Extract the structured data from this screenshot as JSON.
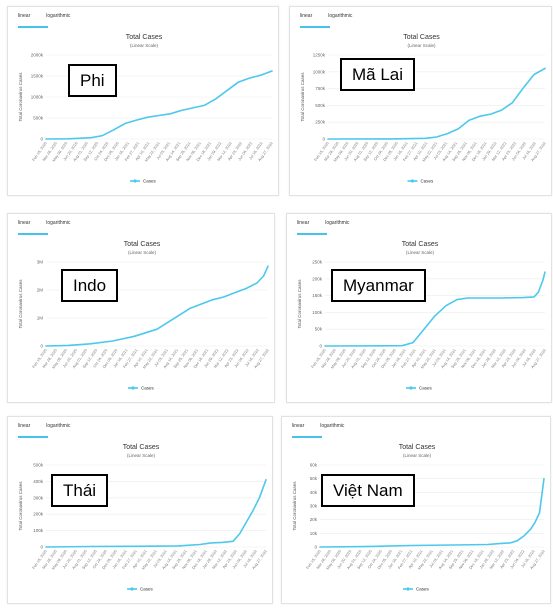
{
  "tabs": [
    "linear",
    "logarithmic"
  ],
  "chart_title": "Total Cases",
  "chart_subtitle": "(Linear Scale)",
  "ylabel": "Total Coronavirus Cases",
  "legend": "Cases",
  "line_color": "#4cc8ee",
  "chart_data": [
    {
      "type": "line",
      "country": "Phi",
      "yticks": [
        "0",
        "500k",
        "1000k",
        "1500k",
        "2000k"
      ],
      "ymax": 2000000,
      "xticks": [
        "Feb 15, 2020",
        "Mar 28, 2020",
        "May 09, 2020",
        "Jun 20, 2020",
        "Aug 01, 2020",
        "Sep 12, 2020",
        "Oct 24, 2020",
        "Dec 05, 2020",
        "Jan 16, 2021",
        "Feb 27, 2021",
        "Apr 10, 2021",
        "May 22, 2021",
        "Jul 03, 2021",
        "Aug 14, 2021",
        "Sep 25, 2021",
        "Nov 06, 2021",
        "Dec 18, 2021",
        "Jan 29, 2022",
        "Mar 12, 2022",
        "Apr 23, 2022",
        "Jun 04, 2022",
        "Jul 16, 2022",
        "Aug 27, 2022"
      ],
      "x": [
        0,
        0.1,
        0.2,
        0.25,
        0.3,
        0.35,
        0.4,
        0.45,
        0.5,
        0.55,
        0.6,
        0.65,
        0.7,
        0.75,
        0.8,
        0.85,
        0.9,
        0.95,
        1.0
      ],
      "values": [
        0,
        5000,
        30000,
        80000,
        220000,
        370000,
        450000,
        520000,
        560000,
        600000,
        680000,
        740000,
        800000,
        950000,
        1150000,
        1350000,
        1450000,
        1520000,
        1620000
      ]
    },
    {
      "type": "line",
      "country": "Mã Lai",
      "yticks": [
        "0",
        "250k",
        "500k",
        "750k",
        "1000k",
        "1250k"
      ],
      "ymax": 1250000,
      "xticks": [
        "Feb 15, 2020",
        "Mar 28, 2020",
        "May 09, 2020",
        "Jun 20, 2020",
        "Aug 01, 2020",
        "Sep 12, 2020",
        "Oct 24, 2020",
        "Dec 05, 2020",
        "Jan 16, 2021",
        "Feb 27, 2021",
        "Apr 10, 2021",
        "May 22, 2021",
        "Jul 03, 2021",
        "Aug 14, 2021",
        "Sep 25, 2021",
        "Nov 06, 2021",
        "Dec 18, 2021",
        "Jan 29, 2022",
        "Mar 12, 2022",
        "Apr 23, 2022",
        "Jun 04, 2022",
        "Jul 16, 2022",
        "Aug 27, 2022"
      ],
      "x": [
        0,
        0.3,
        0.45,
        0.5,
        0.55,
        0.6,
        0.65,
        0.7,
        0.75,
        0.8,
        0.85,
        0.9,
        0.95,
        1.0
      ],
      "values": [
        0,
        2000,
        10000,
        30000,
        80000,
        150000,
        280000,
        340000,
        370000,
        430000,
        540000,
        760000,
        960000,
        1050000
      ]
    },
    {
      "type": "line",
      "country": "Indo",
      "yticks": [
        "0",
        "1M",
        "2M",
        "3M"
      ],
      "ymax": 3000000,
      "xticks": [
        "Feb 15, 2020",
        "Mar 28, 2020",
        "May 09, 2020",
        "Jun 20, 2020",
        "Aug 01, 2020",
        "Sep 12, 2020",
        "Oct 24, 2020",
        "Dec 05, 2020",
        "Jan 16, 2021",
        "Feb 27, 2021",
        "Apr 10, 2021",
        "May 22, 2021",
        "Jul 03, 2021",
        "Aug 14, 2021",
        "Sep 25, 2021",
        "Nov 06, 2021",
        "Dec 18, 2021",
        "Jan 29, 2022",
        "Mar 12, 2022",
        "Apr 23, 2022",
        "Jun 04, 2022",
        "Jul 16, 2022",
        "Aug 27, 2022"
      ],
      "x": [
        0,
        0.1,
        0.2,
        0.3,
        0.4,
        0.5,
        0.55,
        0.6,
        0.65,
        0.7,
        0.75,
        0.8,
        0.85,
        0.9,
        0.95,
        0.98,
        1.0
      ],
      "values": [
        0,
        20000,
        80000,
        180000,
        350000,
        600000,
        850000,
        1100000,
        1350000,
        1500000,
        1650000,
        1750000,
        1900000,
        2050000,
        2250000,
        2500000,
        2850000
      ]
    },
    {
      "type": "line",
      "country": "Myanmar",
      "yticks": [
        "0",
        "50k",
        "100k",
        "150k",
        "200k",
        "250k"
      ],
      "ymax": 250000,
      "xticks": [
        "Feb 15, 2020",
        "Mar 28, 2020",
        "May 09, 2020",
        "Jun 20, 2020",
        "Aug 01, 2020",
        "Sep 12, 2020",
        "Oct 24, 2020",
        "Dec 05, 2020",
        "Jan 16, 2021",
        "Feb 27, 2021",
        "Apr 10, 2021",
        "May 22, 2021",
        "Jul 03, 2021",
        "Aug 14, 2021",
        "Sep 25, 2021",
        "Nov 06, 2021",
        "Dec 18, 2021",
        "Jan 29, 2022",
        "Mar 12, 2022",
        "Apr 23, 2022",
        "Jun 04, 2022",
        "Jul 16, 2022",
        "Aug 27, 2022"
      ],
      "x": [
        0,
        0.35,
        0.4,
        0.45,
        0.5,
        0.55,
        0.6,
        0.65,
        0.7,
        0.8,
        0.9,
        0.95,
        0.97,
        0.99,
        1.0
      ],
      "values": [
        0,
        1000,
        10000,
        50000,
        90000,
        120000,
        138000,
        143000,
        143000,
        143000,
        144000,
        146000,
        160000,
        195000,
        220000
      ]
    },
    {
      "type": "line",
      "country": "Thái",
      "yticks": [
        "0",
        "100k",
        "200k",
        "300k",
        "400k",
        "500k"
      ],
      "ymax": 500000,
      "xticks": [
        "Feb 15, 2020",
        "Mar 28, 2020",
        "May 09, 2020",
        "Jun 20, 2020",
        "Aug 01, 2020",
        "Sep 12, 2020",
        "Oct 24, 2020",
        "Dec 05, 2020",
        "Jan 16, 2021",
        "Feb 27, 2021",
        "Apr 10, 2021",
        "May 22, 2021",
        "Jul 03, 2021",
        "Aug 14, 2021",
        "Sep 25, 2021",
        "Nov 06, 2021",
        "Dec 18, 2021",
        "Jan 29, 2022",
        "Mar 12, 2022",
        "Apr 23, 2022",
        "Jun 04, 2022",
        "Jul 16, 2022",
        "Aug 27, 2022"
      ],
      "x": [
        0,
        0.2,
        0.4,
        0.6,
        0.7,
        0.75,
        0.8,
        0.85,
        0.88,
        0.91,
        0.94,
        0.97,
        1.0
      ],
      "values": [
        0,
        3000,
        4000,
        7000,
        15000,
        25000,
        28000,
        35000,
        80000,
        150000,
        220000,
        300000,
        410000
      ]
    },
    {
      "type": "line",
      "country": "Việt Nam",
      "yticks": [
        "0",
        "10k",
        "20k",
        "30k",
        "40k",
        "50k",
        "60k"
      ],
      "ymax": 60000,
      "xticks": [
        "Feb 15, 2020",
        "Mar 28, 2020",
        "May 09, 2020",
        "Jun 20, 2020",
        "Aug 01, 2020",
        "Sep 12, 2020",
        "Oct 24, 2020",
        "Dec 05, 2020",
        "Jan 16, 2021",
        "Feb 27, 2021",
        "Apr 10, 2021",
        "May 22, 2021",
        "Jul 03, 2021",
        "Aug 14, 2021",
        "Sep 25, 2021",
        "Nov 06, 2021",
        "Dec 18, 2021",
        "Jan 29, 2022",
        "Mar 12, 2022",
        "Apr 23, 2022",
        "Jun 04, 2022",
        "Jul 16, 2022",
        "Aug 27, 2022"
      ],
      "x": [
        0,
        0.2,
        0.4,
        0.6,
        0.75,
        0.8,
        0.85,
        0.88,
        0.91,
        0.94,
        0.96,
        0.98,
        1.0
      ],
      "values": [
        0,
        300,
        1100,
        1500,
        1800,
        2500,
        3000,
        4500,
        8000,
        13000,
        18000,
        25000,
        50000
      ]
    }
  ]
}
